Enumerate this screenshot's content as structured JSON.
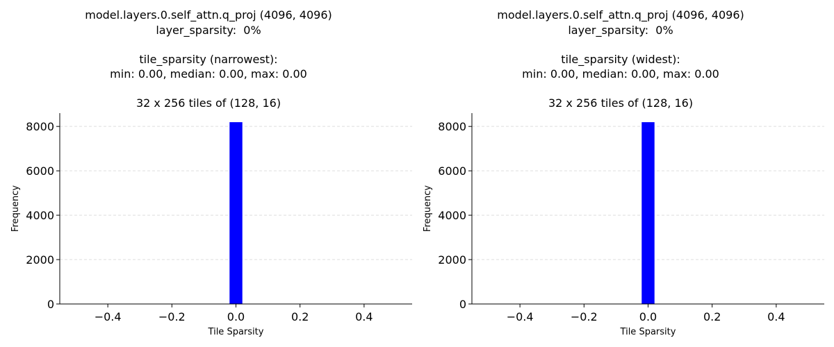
{
  "chart_data": [
    {
      "type": "bar",
      "title_lines": [
        "model.layers.0.self_attn.q_proj (4096, 4096)",
        "layer_sparsity:  0%",
        "",
        "tile_sparsity (narrowest):",
        "min: 0.00, median: 0.00, max: 0.00",
        "",
        "32 x 256 tiles of (128, 16)"
      ],
      "xlabel": "Tile Sparsity",
      "ylabel": "Frequency",
      "xlim": [
        -0.55,
        0.55
      ],
      "ylim": [
        0,
        8600
      ],
      "x_ticks": [
        -0.4,
        -0.2,
        0.0,
        0.2,
        0.4
      ],
      "x_tick_labels": [
        "−0.4",
        "−0.2",
        "0.0",
        "0.2",
        "0.4"
      ],
      "y_ticks": [
        0,
        2000,
        4000,
        6000,
        8000
      ],
      "y_tick_labels": [
        "0",
        "2000",
        "4000",
        "6000",
        "8000"
      ],
      "grid": "y-dashed",
      "bar_color": "#0000ff",
      "bars": [
        {
          "x0": -0.02,
          "x1": 0.02,
          "value": 8192
        }
      ]
    },
    {
      "type": "bar",
      "title_lines": [
        "model.layers.0.self_attn.q_proj (4096, 4096)",
        "layer_sparsity:  0%",
        "",
        "tile_sparsity (widest):",
        "min: 0.00, median: 0.00, max: 0.00",
        "",
        "32 x 256 tiles of (128, 16)"
      ],
      "xlabel": "Tile Sparsity",
      "ylabel": "Frequency",
      "xlim": [
        -0.55,
        0.55
      ],
      "ylim": [
        0,
        8600
      ],
      "x_ticks": [
        -0.4,
        -0.2,
        0.0,
        0.2,
        0.4
      ],
      "x_tick_labels": [
        "−0.4",
        "−0.2",
        "0.0",
        "0.2",
        "0.4"
      ],
      "y_ticks": [
        0,
        2000,
        4000,
        6000,
        8000
      ],
      "y_tick_labels": [
        "0",
        "2000",
        "4000",
        "6000",
        "8000"
      ],
      "grid": "y-dashed",
      "bar_color": "#0000ff",
      "bars": [
        {
          "x0": -0.02,
          "x1": 0.02,
          "value": 8192
        }
      ]
    }
  ]
}
